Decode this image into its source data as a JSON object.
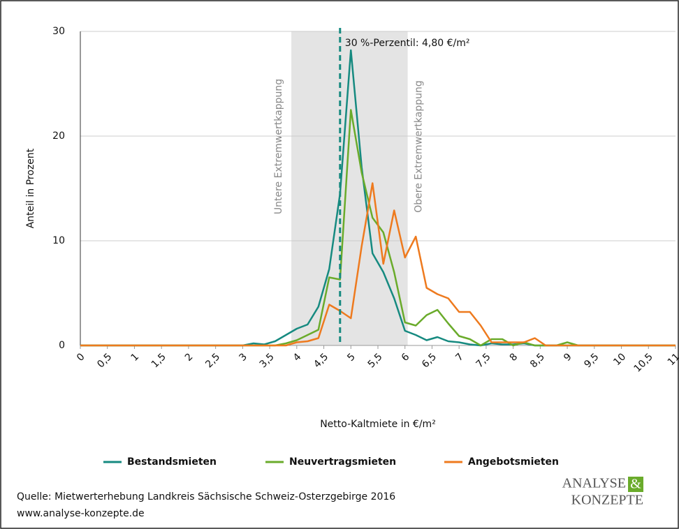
{
  "chart_data": {
    "type": "line",
    "x": [
      0,
      0.2,
      0.4,
      0.6,
      0.8,
      1,
      1.2,
      1.4,
      1.6,
      1.8,
      2,
      2.2,
      2.4,
      2.6,
      2.8,
      3,
      3.2,
      3.4,
      3.6,
      3.8,
      4,
      4.2,
      4.4,
      4.6,
      4.8,
      5,
      5.2,
      5.4,
      5.6,
      5.8,
      6,
      6.2,
      6.4,
      6.6,
      6.8,
      7,
      7.2,
      7.4,
      7.6,
      7.8,
      8,
      8.2,
      8.4,
      8.6,
      8.8,
      9,
      9.2,
      9.4,
      9.6,
      9.8,
      10,
      10.2,
      10.4,
      10.6,
      10.8,
      11
    ],
    "series": [
      {
        "name": "Bestandsmieten",
        "color": "#168a80",
        "values": [
          0,
          0,
          0,
          0,
          0,
          0,
          0,
          0,
          0,
          0,
          0,
          0,
          0,
          0,
          0,
          0,
          0.2,
          0.1,
          0.4,
          1.0,
          1.6,
          2.0,
          3.7,
          7.3,
          14.5,
          28.2,
          17,
          8.8,
          7.0,
          4.5,
          1.4,
          1.0,
          0.5,
          0.8,
          0.4,
          0.3,
          0.1,
          0,
          0.2,
          0.1,
          0.1,
          0.2,
          0,
          0,
          0,
          0,
          0,
          0,
          0,
          0,
          0,
          0,
          0,
          0,
          0,
          0
        ]
      },
      {
        "name": "Neuvertragsmieten",
        "color": "#6aab2b",
        "values": [
          0,
          0,
          0,
          0,
          0,
          0,
          0,
          0,
          0,
          0,
          0,
          0,
          0,
          0,
          0,
          0,
          0,
          0,
          0,
          0.2,
          0.5,
          1.0,
          1.5,
          6.5,
          6.3,
          22.5,
          16.5,
          12.2,
          10.8,
          7,
          2.2,
          1.9,
          2.9,
          3.4,
          2.1,
          0.9,
          0.6,
          0,
          0.6,
          0.6,
          0,
          0.3,
          0,
          0,
          0,
          0.3,
          0,
          0,
          0,
          0,
          0,
          0,
          0,
          0,
          0,
          0
        ]
      },
      {
        "name": "Angebotsmieten",
        "color": "#ee7a1e",
        "values": [
          0,
          0,
          0,
          0,
          0,
          0,
          0,
          0,
          0,
          0,
          0,
          0,
          0,
          0,
          0,
          0,
          0,
          0,
          0,
          0,
          0.3,
          0.4,
          0.7,
          3.9,
          3.3,
          2.6,
          9.5,
          15.5,
          7.8,
          12.9,
          8.4,
          10.4,
          5.5,
          4.9,
          4.5,
          3.2,
          3.2,
          1.9,
          0.3,
          0.3,
          0.3,
          0.3,
          0.7,
          0,
          0,
          0,
          0,
          0,
          0,
          0,
          0,
          0,
          0,
          0,
          0,
          0
        ]
      }
    ],
    "xlim": [
      0,
      11
    ],
    "ylim": [
      0,
      30
    ],
    "xticks": [
      0,
      {
        "value": 0.5,
        "label": "0,5"
      },
      1,
      {
        "value": 1.5,
        "label": "1,5"
      },
      2,
      {
        "value": 2.5,
        "label": "2,5"
      },
      3,
      {
        "value": 3.5,
        "label": "3,5"
      },
      4,
      {
        "value": 4.5,
        "label": "4,5"
      },
      5,
      {
        "value": 5.5,
        "label": "5,5"
      },
      6,
      {
        "value": 6.5,
        "label": "6,5"
      },
      7,
      {
        "value": 7.5,
        "label": "7,5"
      },
      8,
      {
        "value": 8.5,
        "label": "8,5"
      },
      9,
      {
        "value": 9.5,
        "label": "9,5"
      },
      10,
      {
        "value": 10.5,
        "label": "10,5"
      },
      11
    ],
    "yticks": [
      0,
      10,
      20,
      30
    ],
    "grid": true,
    "xlabel": "Netto-Kaltmiete in €/m²",
    "ylabel": "Anteil in Prozent",
    "band": {
      "range": [
        3.9,
        6.05
      ],
      "lower_label": "Untere Extremwertkappung",
      "upper_label": "Obere Extremwertkappung",
      "color": "#e4e4e4"
    },
    "percentile": {
      "value": 4.8,
      "label": "30 %-Perzentil: 4,80 €/m²",
      "color": "#168a80"
    },
    "legend": "bottom"
  },
  "footer": {
    "source": "Quelle: Mietwerterhebung Landkreis Sächsische Schweiz-Osterzgebirge 2016",
    "url": "www.analyse-konzepte.de"
  },
  "logo": {
    "line1": "ANALYSE",
    "amp": "&",
    "line2": "KONZEPTE"
  }
}
